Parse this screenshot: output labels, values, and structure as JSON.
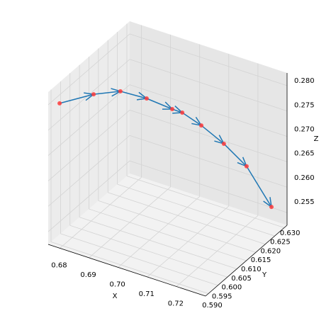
{
  "chart_data": {
    "type": "line3d",
    "x_label": "X",
    "y_label": "Y",
    "z_label": "Z",
    "series": [
      {
        "color": "#1f77b4",
        "marker_color": "#ff3b3b",
        "x": [
          0.6777,
          0.6843,
          0.6894,
          0.6958,
          0.7023,
          0.7051,
          0.7106,
          0.7171,
          0.7234,
          0.7296
        ],
        "y": [
          0.5919,
          0.5997,
          0.606,
          0.61,
          0.6135,
          0.6145,
          0.6161,
          0.618,
          0.6203,
          0.6239
        ],
        "z": [
          0.2795,
          0.28,
          0.2795,
          0.278,
          0.276,
          0.2755,
          0.2735,
          0.2705,
          0.2665,
          0.2585
        ]
      }
    ],
    "xlim": [
      0.676,
      0.73
    ],
    "ylim": [
      0.5885,
      0.6315
    ],
    "zlim": [
      0.2525,
      0.2825
    ],
    "xticks": [
      0.68,
      0.69,
      {
        "value": 0.7,
        "label": "0.70"
      },
      0.71,
      0.72
    ],
    "yticks": [
      {
        "value": 0.59,
        "label": "0.590"
      },
      0.595,
      {
        "value": 0.6,
        "label": "0.600"
      },
      0.605,
      {
        "value": 0.61,
        "label": "0.610"
      },
      0.615,
      {
        "value": 0.62,
        "label": "0.620"
      },
      0.625,
      {
        "value": 0.63,
        "label": "0.630"
      }
    ],
    "zticks": [
      0.255,
      {
        "value": 0.26,
        "label": "0.260"
      },
      0.265,
      {
        "value": 0.27,
        "label": "0.270"
      },
      0.275,
      {
        "value": 0.28,
        "label": "0.280"
      }
    ],
    "grid": true
  }
}
